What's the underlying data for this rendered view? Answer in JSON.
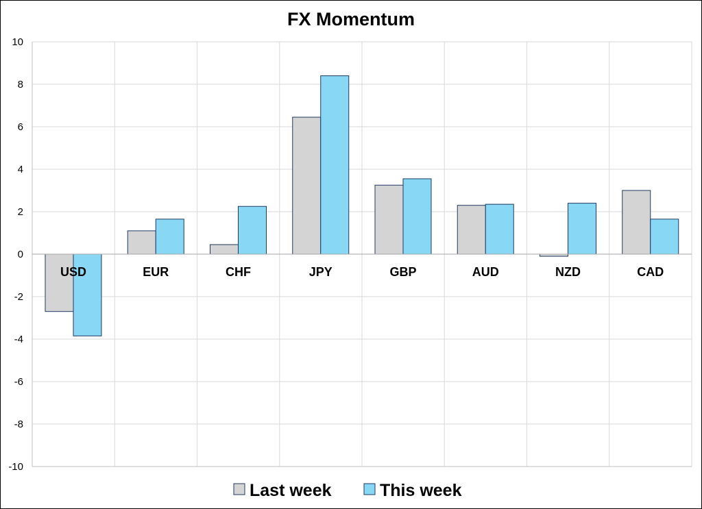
{
  "chart_data": {
    "type": "bar",
    "title": "FX Momentum",
    "xlabel": "",
    "ylabel": "",
    "categories": [
      "USD",
      "EUR",
      "CHF",
      "JPY",
      "GBP",
      "AUD",
      "NZD",
      "CAD"
    ],
    "series": [
      {
        "name": "Last week",
        "color": "#d4d4d4",
        "values": [
          -2.7,
          1.1,
          0.45,
          6.45,
          3.25,
          2.3,
          -0.1,
          3.0
        ]
      },
      {
        "name": "This week",
        "color": "#87d7f5",
        "values": [
          -3.85,
          1.65,
          2.25,
          8.4,
          3.55,
          2.35,
          2.4,
          1.65
        ]
      }
    ],
    "ylim": [
      -10,
      10
    ],
    "yticks": [
      10,
      8,
      6,
      4,
      2,
      0,
      -2,
      -4,
      -6,
      -8,
      -10
    ],
    "grid": true,
    "bar_border_color": "#1f3864",
    "legend_position": "bottom"
  }
}
